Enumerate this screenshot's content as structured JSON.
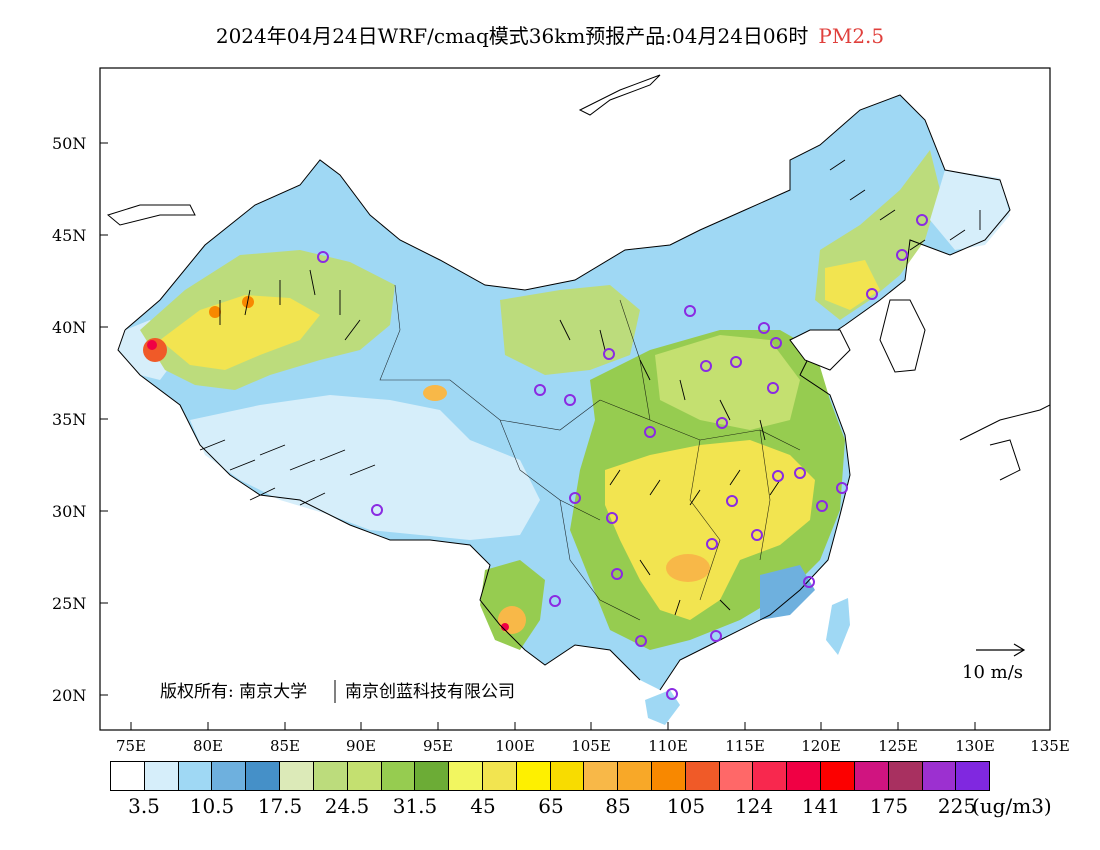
{
  "title": {
    "main": "2024年04月24日WRF/cmaq模式36km预报产品:04月24日06时",
    "variable": "PM2.5",
    "variable_color": "#e0403c"
  },
  "axes": {
    "lat_labels": [
      "50N",
      "45N",
      "40N",
      "35N",
      "30N",
      "25N",
      "20N"
    ],
    "lon_labels": [
      "75E",
      "80E",
      "85E",
      "90E",
      "95E",
      "100E",
      "105E",
      "110E",
      "115E",
      "120E",
      "125E",
      "130E",
      "135E"
    ]
  },
  "copyright": {
    "label": "版权所有: 南京大学",
    "company": "南京创蓝科技有限公司"
  },
  "wind_reference": {
    "label": "10 m/s"
  },
  "legend": {
    "colors": [
      "#ffffff",
      "#d6eefa",
      "#9fd8f4",
      "#6eb0de",
      "#4590c8",
      "#dceab8",
      "#bcdc7c",
      "#c4e070",
      "#96cc50",
      "#6cac36",
      "#f2f660",
      "#f2e450",
      "#fef000",
      "#f8dc00",
      "#f8b848",
      "#f8a828",
      "#f88800",
      "#f05a28",
      "#ff6868",
      "#f8284e",
      "#f00044",
      "#fc0000",
      "#d01480",
      "#a83060",
      "#9c30d0",
      "#8028e0"
    ],
    "labels": [
      "3.5",
      "10.5",
      "17.5",
      "24.5",
      "31.5",
      "45",
      "65",
      "85",
      "105",
      "124",
      "141",
      "175",
      "225"
    ],
    "unit": "(ug/m3)"
  }
}
